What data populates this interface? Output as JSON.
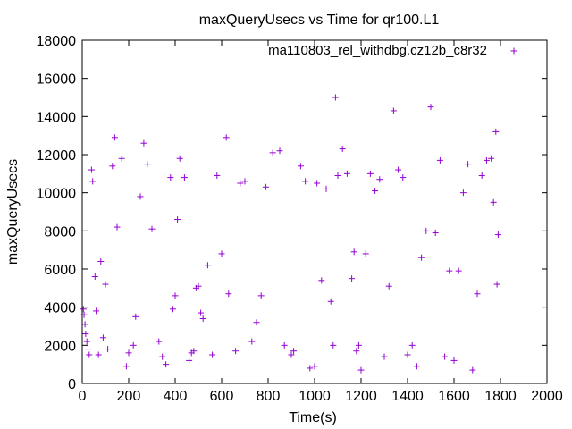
{
  "chart_data": {
    "type": "scatter",
    "title": "maxQueryUsecs vs Time for qr100.L1",
    "xlabel": "Time(s)",
    "ylabel": "maxQueryUsecs",
    "xlim": [
      0,
      2000
    ],
    "ylim": [
      0,
      18000
    ],
    "x_ticks": [
      0,
      200,
      400,
      600,
      800,
      1000,
      1200,
      1400,
      1600,
      1800,
      2000
    ],
    "y_ticks": [
      0,
      2000,
      4000,
      6000,
      8000,
      10000,
      12000,
      14000,
      16000,
      18000
    ],
    "legend_position": "top-right",
    "series": [
      {
        "name": "ma110803_rel_withdbg.cz12b_c8r32",
        "color": "#9400d3",
        "marker": "+",
        "points": [
          [
            5,
            3900
          ],
          [
            8,
            3600
          ],
          [
            12,
            3100
          ],
          [
            15,
            2600
          ],
          [
            20,
            2200
          ],
          [
            25,
            1800
          ],
          [
            30,
            1500
          ],
          [
            40,
            11200
          ],
          [
            45,
            10600
          ],
          [
            55,
            5600
          ],
          [
            60,
            3800
          ],
          [
            70,
            1500
          ],
          [
            80,
            6400
          ],
          [
            90,
            2400
          ],
          [
            100,
            5200
          ],
          [
            110,
            1800
          ],
          [
            130,
            11400
          ],
          [
            140,
            12900
          ],
          [
            150,
            8200
          ],
          [
            170,
            11800
          ],
          [
            190,
            900
          ],
          [
            200,
            1600
          ],
          [
            220,
            2000
          ],
          [
            230,
            3500
          ],
          [
            250,
            9800
          ],
          [
            265,
            12600
          ],
          [
            280,
            11500
          ],
          [
            300,
            8100
          ],
          [
            330,
            2200
          ],
          [
            345,
            1400
          ],
          [
            360,
            1000
          ],
          [
            380,
            10800
          ],
          [
            390,
            3900
          ],
          [
            400,
            4600
          ],
          [
            410,
            8600
          ],
          [
            420,
            11800
          ],
          [
            440,
            10800
          ],
          [
            460,
            1200
          ],
          [
            470,
            1600
          ],
          [
            480,
            1700
          ],
          [
            490,
            5000
          ],
          [
            500,
            5100
          ],
          [
            510,
            3700
          ],
          [
            520,
            3400
          ],
          [
            540,
            6200
          ],
          [
            560,
            1500
          ],
          [
            580,
            10900
          ],
          [
            600,
            6800
          ],
          [
            620,
            12900
          ],
          [
            630,
            4700
          ],
          [
            660,
            1700
          ],
          [
            680,
            10500
          ],
          [
            700,
            10600
          ],
          [
            730,
            2200
          ],
          [
            750,
            3200
          ],
          [
            770,
            4600
          ],
          [
            790,
            10300
          ],
          [
            820,
            12100
          ],
          [
            850,
            12200
          ],
          [
            870,
            2000
          ],
          [
            900,
            1500
          ],
          [
            910,
            1700
          ],
          [
            940,
            11400
          ],
          [
            960,
            10600
          ],
          [
            980,
            800
          ],
          [
            1000,
            900
          ],
          [
            1010,
            10500
          ],
          [
            1030,
            5400
          ],
          [
            1050,
            10200
          ],
          [
            1070,
            4300
          ],
          [
            1080,
            2000
          ],
          [
            1090,
            15000
          ],
          [
            1100,
            10900
          ],
          [
            1120,
            12300
          ],
          [
            1140,
            11000
          ],
          [
            1160,
            5500
          ],
          [
            1170,
            6900
          ],
          [
            1180,
            1700
          ],
          [
            1190,
            2000
          ],
          [
            1200,
            700
          ],
          [
            1220,
            6800
          ],
          [
            1240,
            11000
          ],
          [
            1260,
            10100
          ],
          [
            1280,
            10700
          ],
          [
            1300,
            1400
          ],
          [
            1320,
            5100
          ],
          [
            1340,
            14300
          ],
          [
            1360,
            11200
          ],
          [
            1380,
            10800
          ],
          [
            1400,
            1500
          ],
          [
            1420,
            2000
          ],
          [
            1440,
            900
          ],
          [
            1460,
            6600
          ],
          [
            1480,
            8000
          ],
          [
            1500,
            14500
          ],
          [
            1520,
            7900
          ],
          [
            1540,
            11700
          ],
          [
            1560,
            1400
          ],
          [
            1580,
            5900
          ],
          [
            1600,
            1200
          ],
          [
            1620,
            5900
          ],
          [
            1640,
            10000
          ],
          [
            1660,
            11500
          ],
          [
            1680,
            700
          ],
          [
            1700,
            4700
          ],
          [
            1720,
            10900
          ],
          [
            1740,
            11700
          ],
          [
            1760,
            11800
          ],
          [
            1770,
            9500
          ],
          [
            1780,
            13200
          ],
          [
            1785,
            5200
          ],
          [
            1790,
            7800
          ]
        ]
      }
    ]
  }
}
